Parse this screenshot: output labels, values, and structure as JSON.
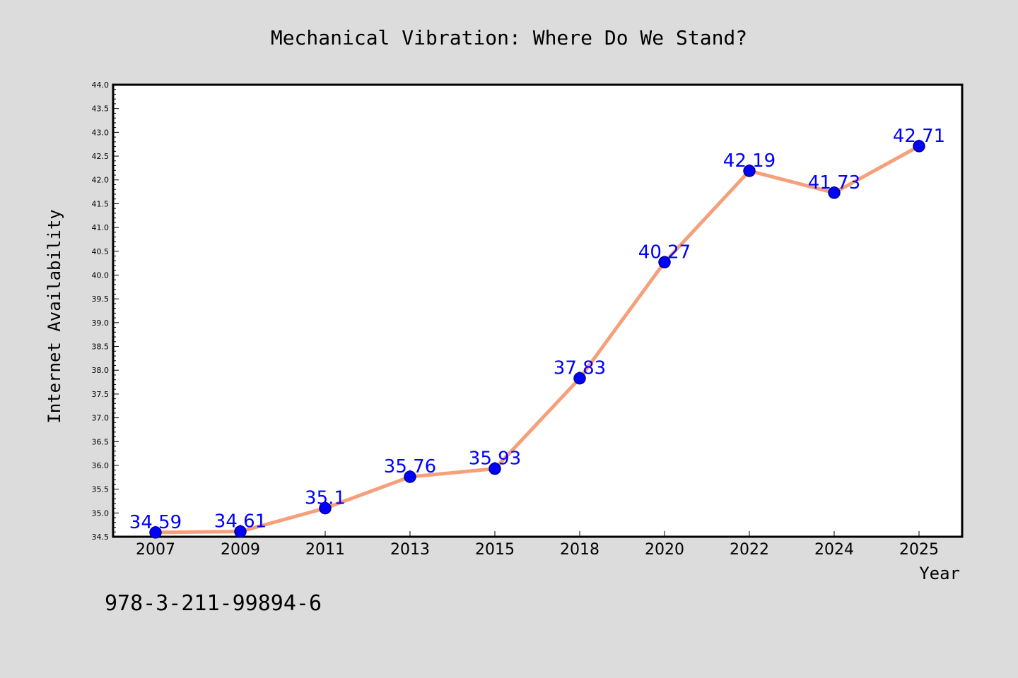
{
  "chart_data": {
    "type": "line",
    "title": "Mechanical Vibration: Where Do We Stand?",
    "xlabel": "Year",
    "ylabel": "Internet Availability",
    "categories": [
      "2007",
      "2009",
      "2011",
      "2013",
      "2015",
      "2018",
      "2020",
      "2022",
      "2024",
      "2025"
    ],
    "series": [
      {
        "values": [
          34.59,
          34.61,
          35.1,
          35.76,
          35.93,
          37.83,
          40.27,
          42.19,
          41.73,
          42.71
        ],
        "labels": [
          "34.59",
          "34.61",
          "35.1",
          "35.76",
          "35.93",
          "37.83",
          "40.27",
          "42.19",
          "41.73",
          "42.71"
        ]
      }
    ],
    "ylim": [
      34.5,
      44.0
    ],
    "yticks": [
      "34.5",
      "35.0",
      "35.5",
      "36.0",
      "36.5",
      "37.0",
      "37.5",
      "38.0",
      "38.5",
      "39.0",
      "39.5",
      "40.0",
      "40.5",
      "41.0",
      "41.5",
      "42.0",
      "42.5",
      "43.0",
      "43.5",
      "44.0"
    ],
    "grid": false,
    "legend": "none",
    "colors": {
      "line": "#f5a07a",
      "marker": "#0000ff",
      "marker_edge": "#00008b",
      "label": "#0000ff",
      "background": "#dcdcdc",
      "plot_background": "#ffffff"
    }
  },
  "footer": {
    "text": "978-3-211-99894-6"
  }
}
